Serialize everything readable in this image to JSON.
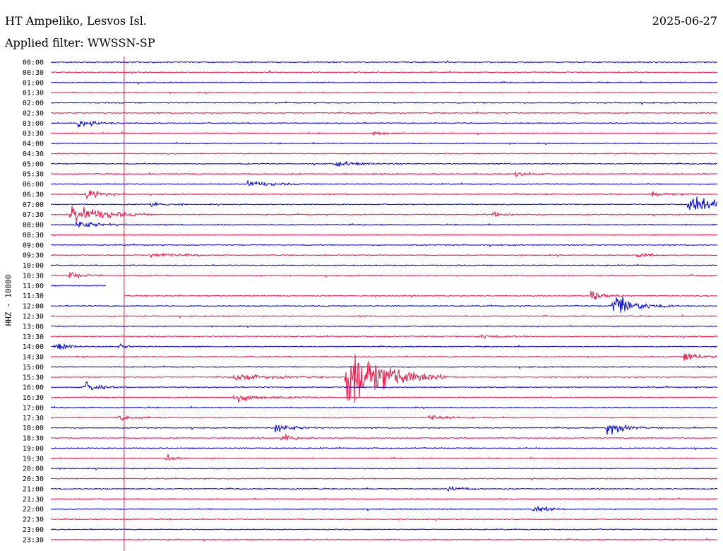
{
  "header": {
    "station": "HT Ampeliko, Lesvos Isl.",
    "date": "2025-06-27",
    "filter": "Applied filter: WWSSN-SP"
  },
  "chart_data": {
    "type": "line",
    "ylabel": "HHZ - 10000",
    "rows": [
      "00:00",
      "00:30",
      "01:00",
      "01:30",
      "02:00",
      "02:30",
      "03:00",
      "03:30",
      "04:00",
      "04:30",
      "05:00",
      "05:30",
      "06:00",
      "06:30",
      "07:00",
      "07:30",
      "08:00",
      "08:30",
      "09:00",
      "09:30",
      "10:00",
      "10:30",
      "11:00",
      "11:30",
      "12:00",
      "12:30",
      "13:00",
      "13:30",
      "14:00",
      "14:30",
      "15:00",
      "15:30",
      "16:00",
      "16:30",
      "17:00",
      "17:30",
      "18:00",
      "18:30",
      "19:00",
      "19:30",
      "20:00",
      "20:30",
      "21:00",
      "21:30",
      "22:00",
      "22:30",
      "23:00",
      "23:30"
    ],
    "row_span_minutes": 30,
    "colors": {
      "even_rows": "#0000dd",
      "odd_rows": "#ee1144",
      "time_marker": "#dd1144"
    },
    "trace_gaps": [
      {
        "row": "11:00",
        "minutes": [
          2.5,
          30
        ]
      },
      {
        "row": "11:30",
        "minutes": [
          0,
          3.3
        ]
      }
    ],
    "time_marker_minute": 3.3,
    "events": [
      {
        "row": "03:00",
        "minute": 1.2,
        "amplitude": 9,
        "duration": 0.7
      },
      {
        "row": "03:30",
        "minute": 14.5,
        "amplitude": 6,
        "duration": 0.6
      },
      {
        "row": "05:00",
        "minute": 12.8,
        "amplitude": 5,
        "duration": 1.0
      },
      {
        "row": "05:30",
        "minute": 20.9,
        "amplitude": 8,
        "duration": 0.5
      },
      {
        "row": "06:00",
        "minute": 8.8,
        "amplitude": 7,
        "duration": 1.0
      },
      {
        "row": "06:30",
        "minute": 1.6,
        "amplitude": 11,
        "duration": 0.6
      },
      {
        "row": "06:30",
        "minute": 27.0,
        "amplitude": 5,
        "duration": 0.8
      },
      {
        "row": "07:00",
        "minute": 4.5,
        "amplitude": 7,
        "duration": 0.5
      },
      {
        "row": "07:00",
        "minute": 28.7,
        "amplitude": 22,
        "duration": 1.2
      },
      {
        "row": "07:30",
        "minute": 0.9,
        "amplitude": 24,
        "duration": 1.2
      },
      {
        "row": "07:30",
        "minute": 19.8,
        "amplitude": 4,
        "duration": 0.8
      },
      {
        "row": "08:00",
        "minute": 1.1,
        "amplitude": 8,
        "duration": 1.0
      },
      {
        "row": "09:30",
        "minute": 4.5,
        "amplitude": 5,
        "duration": 1.0
      },
      {
        "row": "09:30",
        "minute": 26.3,
        "amplitude": 7,
        "duration": 0.5
      },
      {
        "row": "10:30",
        "minute": 0.8,
        "amplitude": 8,
        "duration": 0.5
      },
      {
        "row": "11:30",
        "minute": 24.3,
        "amplitude": 11,
        "duration": 0.5
      },
      {
        "row": "12:00",
        "minute": 25.3,
        "amplitude": 25,
        "duration": 0.9
      },
      {
        "row": "13:30",
        "minute": 19.3,
        "amplitude": 4,
        "duration": 0.8
      },
      {
        "row": "14:00",
        "minute": 0.2,
        "amplitude": 9,
        "duration": 0.5
      },
      {
        "row": "14:00",
        "minute": 3.1,
        "amplitude": 5,
        "duration": 0.4
      },
      {
        "row": "14:30",
        "minute": 28.5,
        "amplitude": 9,
        "duration": 0.8
      },
      {
        "row": "15:30",
        "minute": 13.3,
        "amplitude": 80,
        "duration": 1.5
      },
      {
        "row": "15:30",
        "minute": 8.2,
        "amplitude": 7,
        "duration": 1.5
      },
      {
        "row": "16:00",
        "minute": 1.5,
        "amplitude": 11,
        "duration": 0.6
      },
      {
        "row": "16:30",
        "minute": 8.2,
        "amplitude": 8,
        "duration": 1.3
      },
      {
        "row": "17:30",
        "minute": 3.0,
        "amplitude": 5,
        "duration": 0.8
      },
      {
        "row": "17:30",
        "minute": 17.0,
        "amplitude": 7,
        "duration": 0.7
      },
      {
        "row": "18:00",
        "minute": 10.1,
        "amplitude": 8,
        "duration": 0.8
      },
      {
        "row": "18:00",
        "minute": 25.0,
        "amplitude": 17,
        "duration": 0.6
      },
      {
        "row": "18:30",
        "minute": 10.4,
        "amplitude": 9,
        "duration": 0.5
      },
      {
        "row": "19:30",
        "minute": 5.2,
        "amplitude": 9,
        "duration": 0.4
      },
      {
        "row": "21:00",
        "minute": 17.8,
        "amplitude": 6,
        "duration": 0.6
      },
      {
        "row": "22:00",
        "minute": 21.7,
        "amplitude": 9,
        "duration": 0.5
      }
    ]
  }
}
